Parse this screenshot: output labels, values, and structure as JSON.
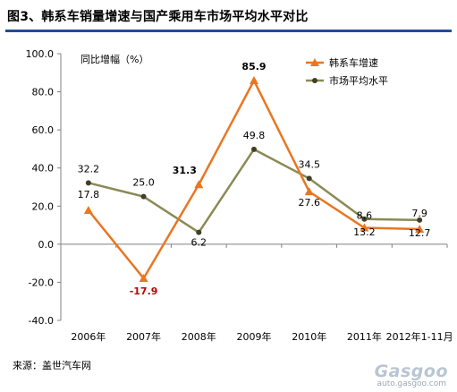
{
  "title": "图3、韩系车销量增速与国产乘用车市场平均水平对比",
  "source": "来源：盖世汽车网",
  "watermark": {
    "logo": "Gasgoo",
    "url": "auto.gasgoo.com"
  },
  "colors": {
    "korean_series": "#e87722",
    "market_series": "#8b8a55",
    "title_rule": "#1f4e9a",
    "negative_label": "#c00000"
  },
  "chart_data": {
    "type": "line",
    "title": "图3、韩系车销量增速与国产乘用车市场平均水平对比",
    "ylabel": "同比增幅（%）",
    "xlabel": "",
    "categories": [
      "2006年",
      "2007年",
      "2008年",
      "2009年",
      "2010年",
      "2011年",
      "2012年1-11月"
    ],
    "ylim": [
      -40,
      100
    ],
    "yticks": [
      "-40.0",
      "-20.0",
      "0.0",
      "20.0",
      "40.0",
      "60.0",
      "80.0",
      "100.0"
    ],
    "grid": false,
    "legend": "top-right",
    "series": [
      {
        "name": "韩系车增速",
        "marker": "triangle",
        "values": [
          17.8,
          -17.9,
          31.3,
          85.9,
          27.6,
          8.6,
          7.9
        ],
        "labels": [
          "17.8",
          "-17.9",
          "31.3",
          "85.9",
          "27.6",
          "8.6",
          "7.9"
        ]
      },
      {
        "name": "市场平均水平",
        "marker": "circle",
        "values": [
          32.2,
          25.0,
          6.2,
          49.8,
          34.5,
          13.2,
          12.7
        ],
        "labels": [
          "32.2",
          "25.0",
          "6.2",
          "49.8",
          "34.5",
          "13.2",
          "12.7"
        ]
      }
    ]
  }
}
